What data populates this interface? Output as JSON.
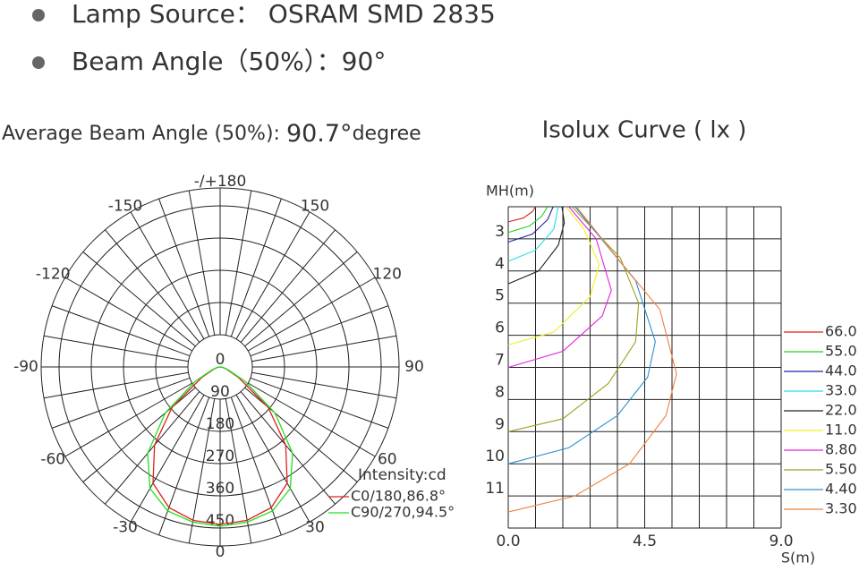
{
  "header": {
    "bullets": [
      "Lamp Source： OSRAM SMD 2835",
      "Beam Angle（50%）：90°"
    ]
  },
  "chart_data": [
    {
      "type": "polar",
      "title": "Average Beam Angle (50%): ",
      "title_value": "90.7°",
      "title_unit": "degree",
      "angles": [
        -90,
        -80,
        -70,
        -60,
        -50,
        -40,
        -30,
        -20,
        -10,
        0,
        10,
        20,
        30,
        40,
        50,
        60,
        70,
        80,
        90
      ],
      "series": [
        {
          "name": "C0/180,86.8°",
          "color": "#e02020",
          "values": [
            0,
            8,
            20,
            60,
            175,
            285,
            375,
            418,
            435,
            440,
            435,
            418,
            375,
            285,
            175,
            60,
            20,
            8,
            0
          ]
        },
        {
          "name": "C90/270,94.5°",
          "color": "#20e020",
          "values": [
            0,
            8,
            25,
            80,
            200,
            315,
            392,
            428,
            440,
            445,
            440,
            428,
            392,
            315,
            200,
            80,
            25,
            8,
            0
          ]
        }
      ],
      "rlim": [
        0,
        500
      ],
      "rticks": [
        0,
        90,
        180,
        270,
        360,
        450
      ],
      "thetaticks": [
        {
          "value": 180,
          "label": "-/+180"
        },
        150,
        120,
        90,
        60,
        30,
        0,
        -30,
        -60,
        -90,
        -120,
        -150
      ],
      "legend_title": "Intensity:cd"
    },
    {
      "type": "line",
      "title": "Isolux Curve ( lx )",
      "xlabel": "S(m)",
      "ylabel": "MH(m)",
      "xlim": [
        0,
        9
      ],
      "xticks": [
        {
          "value": 0,
          "label": "0.0"
        },
        4.5,
        {
          "value": 9,
          "label": "9.0"
        }
      ],
      "ylim": [
        2,
        12
      ],
      "yticks": [
        3,
        4,
        5,
        6,
        7,
        8,
        9,
        10,
        11
      ],
      "y_inverted": true,
      "series": [
        {
          "name": "66.0",
          "color": "#e02020",
          "x": [
            0,
            0.5,
            0.8,
            0.9
          ],
          "values": [
            2.47,
            2.35,
            2.15,
            2.0
          ]
        },
        {
          "name": "55.0",
          "color": "#20d020",
          "x": [
            0,
            0.7,
            1.1,
            1.3
          ],
          "values": [
            2.8,
            2.6,
            2.3,
            2.0
          ]
        },
        {
          "name": "44.0",
          "color": "#2020a0",
          "x": [
            0,
            0.8,
            1.3,
            1.48
          ],
          "values": [
            3.1,
            2.85,
            2.4,
            2.0
          ]
        },
        {
          "name": "33.0",
          "color": "#20e0e0",
          "x": [
            0,
            0.9,
            1.5,
            1.65
          ],
          "values": [
            3.7,
            3.35,
            2.7,
            2.0
          ]
        },
        {
          "name": "22.0",
          "color": "#202020",
          "x": [
            0,
            1.0,
            1.65,
            1.85,
            1.77
          ],
          "values": [
            4.4,
            4.0,
            3.2,
            2.5,
            2.0
          ]
        },
        {
          "name": "11.0",
          "color": "#f0f020",
          "x": [
            0,
            1.5,
            2.7,
            3.0,
            2.5,
            1.9
          ],
          "values": [
            6.3,
            5.9,
            4.8,
            3.8,
            2.7,
            2.0
          ]
        },
        {
          "name": "8.80",
          "color": "#e020e0",
          "x": [
            0,
            1.8,
            3.1,
            3.4,
            2.9,
            2.0
          ],
          "values": [
            7.0,
            6.5,
            5.4,
            4.6,
            3.0,
            2.0
          ]
        },
        {
          "name": "5.50",
          "color": "#a0a020",
          "x": [
            0,
            1.8,
            3.3,
            4.2,
            4.3,
            3.7,
            2.1
          ],
          "values": [
            9.0,
            8.6,
            7.5,
            6.2,
            5.0,
            3.6,
            2.0
          ]
        },
        {
          "name": "4.40",
          "color": "#3090d0",
          "x": [
            0,
            2.0,
            3.6,
            4.6,
            4.85,
            4.2,
            2.2
          ],
          "values": [
            10.0,
            9.5,
            8.5,
            7.3,
            6.2,
            4.3,
            2.0
          ]
        },
        {
          "name": "3.30",
          "color": "#f08040",
          "x": [
            0,
            2.2,
            4.0,
            5.2,
            5.55,
            5.0,
            3.6,
            2.25
          ],
          "values": [
            11.5,
            11.0,
            10.0,
            8.5,
            7.2,
            5.2,
            3.6,
            2.0
          ]
        }
      ]
    }
  ]
}
